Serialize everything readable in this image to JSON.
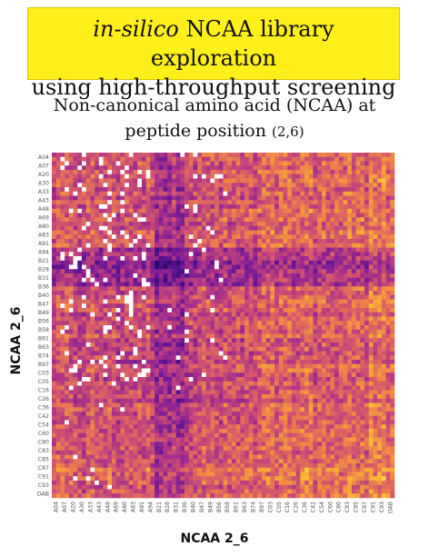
{
  "banner": {
    "line1_italic": "in-silico",
    "line1_rest": " NCAA library exploration",
    "line2": "using high-throughput screening"
  },
  "subtitle": {
    "line1": "Non-canonical amino acid (NCAA)  at",
    "line2_main": "peptide position ",
    "line2_small": "(2,6)"
  },
  "chart_data": {
    "type": "heatmap",
    "xlabel": "NCAA 2_6",
    "ylabel": "NCAA 2_6",
    "y_tick_labels": [
      "A04",
      "A07",
      "A20",
      "A30",
      "A33",
      "A43",
      "A48",
      "A69",
      "A80",
      "A83",
      "A91",
      "A94",
      "B21",
      "B28",
      "B31",
      "B36",
      "B40",
      "B47",
      "B49",
      "B56",
      "B58",
      "B61",
      "B63",
      "B74",
      "B97",
      "C03",
      "C05",
      "C16",
      "C26",
      "C36",
      "C42",
      "C54",
      "C60",
      "C80",
      "C83",
      "C85",
      "C87",
      "C91",
      "C93",
      "DAB"
    ],
    "x_tick_labels": [
      "A04",
      "A07",
      "A20",
      "A30",
      "A33",
      "A43",
      "A48",
      "A69",
      "A80",
      "A83",
      "A91",
      "A94",
      "B21",
      "B28",
      "B31",
      "B36",
      "B40",
      "B47",
      "B49",
      "B56",
      "B58",
      "B61",
      "B63",
      "B74",
      "B97",
      "C03",
      "C05",
      "C16",
      "C26",
      "C36",
      "C42",
      "C54",
      "C60",
      "C80",
      "C83",
      "C85",
      "C87",
      "C91",
      "C93",
      "DAB"
    ],
    "colormap": "plasma-like (dark purple low, orange/yellow high)",
    "missing_value_color": "#ffffff",
    "grid": false
  }
}
